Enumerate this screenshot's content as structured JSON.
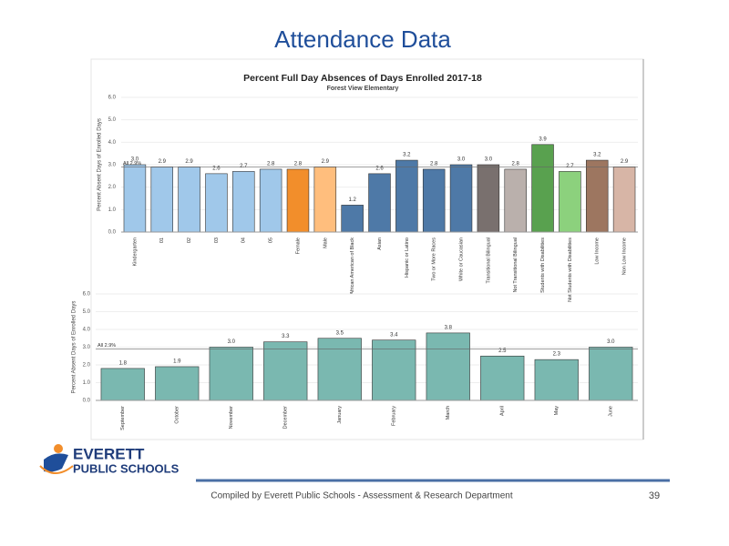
{
  "slide_title": "Attendance Data",
  "footer": "Compiled  by Everett Public Schools - Assessment & Research Department",
  "page_number": "39",
  "logo": {
    "line1": "EVERETT",
    "line2": "PUBLIC SCHOOLS"
  },
  "chart_data": [
    {
      "type": "bar",
      "title": "Percent Full Day Absences of Days Enrolled 2017-18",
      "subtitle": "Forest View Elementary",
      "y_label": "Percent Absent Days of Enrolled Days",
      "categories": [
        "Kindergarten",
        "01",
        "02",
        "03",
        "04",
        "05",
        "Female",
        "Male",
        "African American of Black",
        "Asian",
        "Hispanic or Latino",
        "Two or More Races",
        "White or Caucasian",
        "Transitional Bilingual",
        "Not Transitional Bilingual",
        "Students with Disabilities",
        "Not Students with Disabilities",
        "Low Income",
        "Non Low Income"
      ],
      "values": [
        3.0,
        2.9,
        2.9,
        2.6,
        2.7,
        2.8,
        2.8,
        2.9,
        1.2,
        2.6,
        3.2,
        2.8,
        3.0,
        3.0,
        2.8,
        3.9,
        2.7,
        3.2,
        2.9
      ],
      "value_labels": [
        "3.0",
        "2.9",
        "2.9",
        "2.6",
        "2.7",
        "2.8",
        "2.8",
        "2.9",
        "1.2",
        "2.6",
        "3.2",
        "2.8",
        "3.0",
        "3.0",
        "2.8",
        "3.9",
        "2.7",
        "3.2",
        "2.9"
      ],
      "colors": [
        "#a0c8ea",
        "#a0c8ea",
        "#a0c8ea",
        "#a0c8ea",
        "#a0c8ea",
        "#a0c8ea",
        "#f28e2b",
        "#ffbe7d",
        "#4e79a7",
        "#4e79a7",
        "#4e79a7",
        "#4e79a7",
        "#4e79a7",
        "#79706e",
        "#bab0ac",
        "#59a14f",
        "#8cd17d",
        "#9d7660",
        "#d7b5a6"
      ],
      "reference": {
        "value": 2.9,
        "label": "All 2.9%"
      },
      "ylim": [
        0,
        6
      ],
      "yticks": [
        {
          "value": 0,
          "label": "0.0"
        },
        {
          "value": 1,
          "label": "1.0"
        },
        {
          "value": 2,
          "label": "2.0"
        },
        {
          "value": 3,
          "label": "3.0"
        },
        {
          "value": 4,
          "label": "4.0"
        },
        {
          "value": 5,
          "label": "5.0"
        },
        {
          "value": 6,
          "label": "6.0"
        }
      ]
    },
    {
      "type": "bar",
      "y_label": "Percent Absent Days of Enrolled Days",
      "categories": [
        "September",
        "October",
        "November",
        "December",
        "January",
        "February",
        "March",
        "April",
        "May",
        "June"
      ],
      "values": [
        1.8,
        1.9,
        3.0,
        3.3,
        3.5,
        3.4,
        3.8,
        2.5,
        2.3,
        3.0
      ],
      "value_labels": [
        "1.8",
        "1.9",
        "3.0",
        "3.3",
        "3.5",
        "3.4",
        "3.8",
        "2.5",
        "2.3",
        "3.0"
      ],
      "color": "#7ab8b0",
      "reference": {
        "value": 2.9,
        "label": "All 2.9%"
      },
      "ylim": [
        0,
        6
      ],
      "yticks": [
        {
          "value": 0,
          "label": "0.0"
        },
        {
          "value": 1,
          "label": "1.0"
        },
        {
          "value": 2,
          "label": "2.0"
        },
        {
          "value": 3,
          "label": "3.0"
        },
        {
          "value": 4,
          "label": "4.0"
        },
        {
          "value": 5,
          "label": "5.0"
        },
        {
          "value": 6,
          "label": "6.0"
        }
      ]
    }
  ]
}
